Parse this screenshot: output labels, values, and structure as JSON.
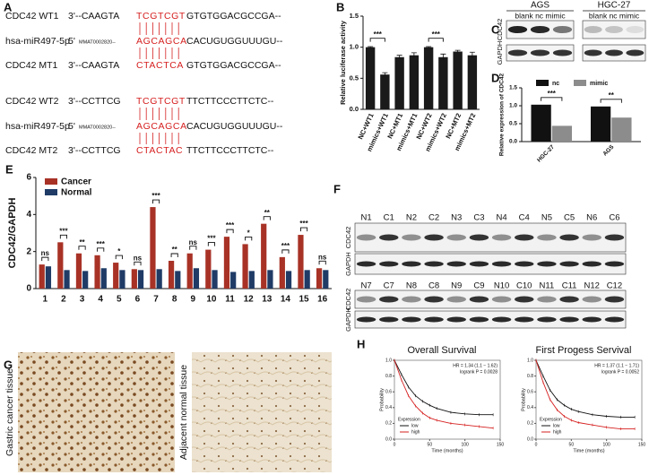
{
  "panel_labels": [
    "A",
    "B",
    "C",
    "D",
    "E",
    "F",
    "G",
    "H"
  ],
  "sequences": [
    {
      "name": "CDC42 WT1",
      "end": "3'--CAAGTA",
      "seed": "TCGTCGT",
      "tail": "GTGTGGACGCCGA--"
    },
    {
      "name": "hsa-miR497-5p",
      "end": "5'",
      "id": "MMAT0002820--",
      "seed": "AGCAGCA",
      "tail": "CACUGUGGUUUGU--"
    },
    {
      "name": "CDC42 MT1",
      "end": "3'--CAAGTA",
      "seed": "CTACTCA",
      "tail": "GTGTGGACGCCGA--"
    },
    {
      "name": "CDC42 WT2",
      "end": "3'--CCTTCG",
      "seed": "TCGTCGT",
      "tail": "TTCTTCCCTTCTC--"
    },
    {
      "name": "hsa-miR497-5p",
      "end": "5'",
      "id": "MMAT0002820--",
      "seed": "AGCAGCA",
      "tail": "CACUGUGGUUUGU--"
    },
    {
      "name": "CDC42 MT2",
      "end": "3'--CCTTCG",
      "seed": "CTACTAC",
      "tail": "TTCTTCCCTTCTC--"
    }
  ],
  "blot_c": {
    "groups": [
      {
        "name": "AGS",
        "lanes": "blank nc mimic"
      },
      {
        "name": "HGC-27",
        "lanes": "blank nc mimic"
      }
    ],
    "proteins": [
      "CDC42",
      "GAPDH"
    ]
  },
  "blot_f": {
    "lanes_1": [
      "N1",
      "C1",
      "N2",
      "C2",
      "N3",
      "C3",
      "N4",
      "C4",
      "N5",
      "C5",
      "N6",
      "C6"
    ],
    "lanes_2": [
      "N7",
      "C7",
      "N8",
      "C8",
      "N9",
      "C9",
      "N10",
      "C10",
      "N11",
      "C11",
      "N12",
      "C12"
    ],
    "proteins": [
      "CDC42",
      "GAPDH"
    ]
  },
  "histology": [
    "Gastric cancer  tissue",
    "Adjacent normal tissue"
  ],
  "chart_data": [
    {
      "type": "bar",
      "ylabel": "Relative luciferase activity",
      "categories": [
        "NC+WT1",
        "mimics+WT1",
        "NC+MT1",
        "mimics+MT1",
        "NC+WT2",
        "mimics+WT2",
        "NC+MT2",
        "mimics+MT2"
      ],
      "values": [
        1.0,
        0.56,
        0.84,
        0.87,
        1.0,
        0.84,
        0.93,
        0.87
      ],
      "errors": [
        0.01,
        0.03,
        0.03,
        0.04,
        0.01,
        0.05,
        0.02,
        0.05
      ],
      "color": "#1a1a1a",
      "ylim": [
        0,
        1.5
      ],
      "yticks": [
        {
          "value": 0,
          "label": "0.0"
        },
        {
          "value": 0.5,
          "label": "0.5"
        },
        {
          "value": 1,
          "label": "1.0"
        },
        {
          "value": 1.5,
          "label": "1.5"
        }
      ],
      "annotations": [
        "***",
        "***"
      ]
    },
    {
      "type": "bar",
      "ylabel": "Relative expression of CDC42",
      "categories": [
        "HGC-27",
        "AGS"
      ],
      "series": [
        {
          "name": "nc",
          "color": "#111111",
          "values": [
            1.03,
            0.98
          ]
        },
        {
          "name": "mimic",
          "color": "#8c8c8c",
          "values": [
            0.44,
            0.67
          ]
        }
      ],
      "ylim": [
        0,
        1.5
      ],
      "yticks": [
        {
          "value": 0,
          "label": "0.0"
        },
        {
          "value": 0.5,
          "label": "0.5"
        },
        {
          "value": 1,
          "label": "1.0"
        },
        {
          "value": 1.5,
          "label": "1.5"
        }
      ],
      "annotations": [
        "***",
        "**"
      ]
    },
    {
      "type": "bar",
      "ylabel": "CDC42/GAPDH",
      "categories": [
        "1",
        "2",
        "3",
        "4",
        "5",
        "6",
        "7",
        "8",
        "9",
        "10",
        "11",
        "12",
        "13",
        "14",
        "15",
        "16"
      ],
      "series": [
        {
          "name": "Cancer",
          "color": "#a83226",
          "values": [
            1.3,
            2.5,
            1.9,
            1.8,
            1.4,
            1.05,
            4.4,
            1.5,
            1.9,
            2.1,
            2.8,
            2.4,
            3.5,
            1.7,
            2.9,
            1.1
          ]
        },
        {
          "name": "Normal",
          "color": "#1f3b66",
          "values": [
            1.2,
            1.0,
            0.95,
            1.1,
            1.0,
            1.0,
            1.05,
            0.95,
            1.1,
            1.0,
            0.9,
            0.95,
            1.0,
            0.95,
            1.0,
            1.0
          ]
        }
      ],
      "ylim": [
        0,
        6
      ],
      "yticks": [
        0,
        2,
        4,
        6
      ],
      "annotations": [
        "ns",
        "***",
        "**",
        "***",
        "*",
        "ns",
        "***",
        "**",
        "ns",
        "***",
        "***",
        "*",
        "**",
        "***",
        "***",
        "ns"
      ]
    },
    {
      "type": "line",
      "title": "Overall Survival",
      "xlabel": "Time (months)",
      "ylabel": "Probability",
      "x": [
        0,
        10,
        20,
        30,
        40,
        50,
        60,
        80,
        100,
        120,
        140
      ],
      "series": [
        {
          "name": "low",
          "color": "#111111",
          "values": [
            1,
            0.82,
            0.66,
            0.55,
            0.48,
            0.43,
            0.39,
            0.34,
            0.32,
            0.31,
            0.31
          ]
        },
        {
          "name": "high",
          "color": "#d62020",
          "values": [
            1,
            0.75,
            0.55,
            0.42,
            0.33,
            0.27,
            0.24,
            0.2,
            0.18,
            0.16,
            0.14
          ]
        }
      ],
      "legend_title": "Expression",
      "annotations": [
        "HR = 1.34 (1.1 − 1.62)",
        "logrank P = 0.0028"
      ],
      "xlim": [
        0,
        150
      ],
      "xticks": [
        0,
        50,
        100,
        150
      ],
      "ylim": [
        0,
        1
      ],
      "yticks": [
        {
          "value": 0,
          "label": "0.0"
        },
        {
          "value": 0.2,
          "label": "0.2"
        },
        {
          "value": 0.4,
          "label": "0.4"
        },
        {
          "value": 0.6,
          "label": "0.6"
        },
        {
          "value": 0.8,
          "label": "0.8"
        },
        {
          "value": 1,
          "label": "1.0"
        }
      ]
    },
    {
      "type": "line",
      "title": "First Progess Servival",
      "xlabel": "Time (months)",
      "ylabel": "Probability",
      "x": [
        0,
        10,
        20,
        30,
        40,
        50,
        60,
        80,
        100,
        120,
        140
      ],
      "series": [
        {
          "name": "low",
          "color": "#111111",
          "values": [
            1,
            0.8,
            0.62,
            0.5,
            0.43,
            0.38,
            0.35,
            0.31,
            0.29,
            0.28,
            0.28
          ]
        },
        {
          "name": "high",
          "color": "#d62020",
          "values": [
            1,
            0.72,
            0.5,
            0.37,
            0.29,
            0.24,
            0.21,
            0.18,
            0.15,
            0.13,
            0.13
          ]
        }
      ],
      "legend_title": "Expression",
      "annotations": [
        "HR = 1.37 (1.1 − 1.71)",
        "logrank P = 0.0052"
      ],
      "xlim": [
        0,
        150
      ],
      "xticks": [
        0,
        50,
        100,
        150
      ],
      "ylim": [
        0,
        1
      ],
      "yticks": [
        {
          "value": 0,
          "label": "0.0"
        },
        {
          "value": 0.2,
          "label": "0.2"
        },
        {
          "value": 0.4,
          "label": "0.4"
        },
        {
          "value": 0.6,
          "label": "0.6"
        },
        {
          "value": 0.8,
          "label": "0.8"
        },
        {
          "value": 1,
          "label": "1.0"
        }
      ]
    }
  ]
}
